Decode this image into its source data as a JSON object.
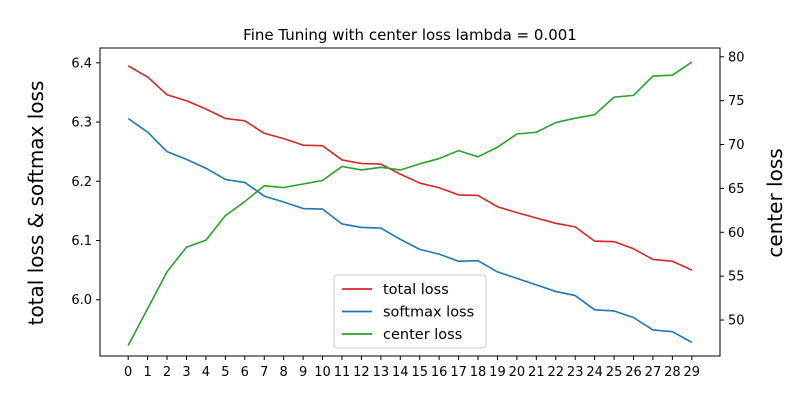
{
  "chart_data": {
    "type": "line",
    "title": "Fine Tuning with center loss lambda = 0.001",
    "xlabel": "",
    "ylabel_left": "total loss & softmax loss",
    "ylabel_right": "center loss",
    "x": [
      0,
      1,
      2,
      3,
      4,
      5,
      6,
      7,
      8,
      9,
      10,
      11,
      12,
      13,
      14,
      15,
      16,
      17,
      18,
      19,
      20,
      21,
      22,
      23,
      24,
      25,
      26,
      27,
      28,
      29
    ],
    "xlim": [
      -1.45,
      30.45
    ],
    "y_left_lim": [
      5.905,
      6.425
    ],
    "y_left_ticks": [
      "6.0",
      "6.1",
      "6.2",
      "6.3",
      "6.4"
    ],
    "y_right_lim": [
      45.9,
      81.0
    ],
    "y_right_ticks": [
      "50",
      "55",
      "60",
      "65",
      "70",
      "75",
      "80"
    ],
    "grid": false,
    "legend_position": "lower center",
    "series": [
      {
        "name": "total loss",
        "axis": "left",
        "color": "#d62728",
        "values": [
          6.395,
          6.376,
          6.346,
          6.336,
          6.322,
          6.306,
          6.302,
          6.281,
          6.272,
          6.261,
          6.26,
          6.236,
          6.23,
          6.229,
          6.212,
          6.197,
          6.189,
          6.177,
          6.176,
          6.157,
          6.147,
          6.138,
          6.129,
          6.123,
          6.099,
          6.098,
          6.086,
          6.068,
          6.065,
          6.05
        ]
      },
      {
        "name": "softmax loss",
        "axis": "left",
        "color": "#1f77b4",
        "values": [
          6.306,
          6.283,
          6.25,
          6.237,
          6.222,
          6.203,
          6.198,
          6.175,
          6.165,
          6.154,
          6.153,
          6.128,
          6.122,
          6.121,
          6.102,
          6.085,
          6.077,
          6.065,
          6.066,
          6.047,
          6.036,
          6.025,
          6.014,
          6.007,
          5.983,
          5.981,
          5.97,
          5.949,
          5.946,
          5.928
        ]
      },
      {
        "name": "center loss",
        "axis": "right",
        "color": "#2ca02c",
        "values": [
          47.1,
          51.3,
          55.5,
          58.3,
          59.1,
          61.9,
          63.5,
          65.3,
          65.1,
          65.5,
          65.9,
          67.5,
          67.1,
          67.4,
          67.1,
          67.8,
          68.4,
          69.3,
          68.6,
          69.7,
          71.2,
          71.4,
          72.5,
          73.0,
          73.4,
          75.4,
          75.6,
          77.8,
          77.9,
          79.4
        ]
      }
    ]
  }
}
